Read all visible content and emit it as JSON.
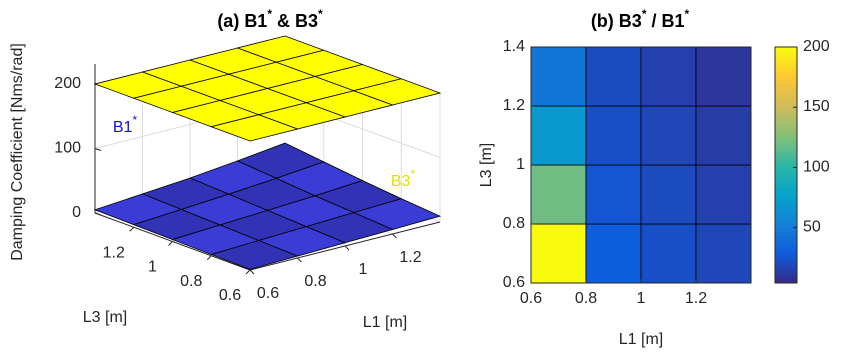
{
  "chart_data": [
    {
      "type": "surface",
      "title": "(a) B1* & B3*",
      "zlabel": "Damping Coefficient [Nms/rad]",
      "xlabel": "L1 [m]",
      "ylabel": "L3 [m]",
      "x": [
        0.6,
        0.8,
        1,
        1.2,
        1.4
      ],
      "y": [
        0.6,
        0.8,
        1,
        1.2,
        1.4
      ],
      "xlim": [
        0.6,
        1.4
      ],
      "ylim": [
        0.6,
        1.4
      ],
      "zlim": [
        0,
        200
      ],
      "xticks": [
        0.6,
        0.8,
        1,
        1.2
      ],
      "yticks": [
        0.6,
        0.8,
        1,
        1.2
      ],
      "zticks": [
        0,
        100,
        200
      ],
      "grid": true,
      "series": [
        {
          "name": "B1*",
          "color": "#3b3bd6",
          "values": [
            [
              1,
              3,
              5,
              7,
              9
            ],
            [
              2,
              5,
              8,
              11,
              14
            ],
            [
              3,
              7,
              11,
              15,
              20
            ],
            [
              4,
              9,
              14,
              20,
              27
            ],
            [
              5,
              11,
              17,
              25,
              34
            ]
          ]
        },
        {
          "name": "B3*",
          "color": "#ffff00",
          "values": [
            [
              200,
              200,
              200,
              200,
              200
            ],
            [
              200,
              200,
              200,
              200,
              200
            ],
            [
              200,
              200,
              200,
              200,
              200
            ],
            [
              200,
              200,
              200,
              200,
              200
            ],
            [
              200,
              200,
              200,
              200,
              200
            ]
          ]
        }
      ]
    },
    {
      "type": "heatmap",
      "title": "(b) B3* / B1*",
      "xlabel": "L1 [m]",
      "ylabel": "L3 [m]",
      "x": [
        0.7,
        0.9,
        1.1,
        1.3
      ],
      "y": [
        0.7,
        0.9,
        1.1,
        1.3
      ],
      "xlim": [
        0.6,
        1.4
      ],
      "ylim": [
        0.6,
        1.4
      ],
      "xticks": [
        0.6,
        0.8,
        1,
        1.2
      ],
      "yticks": [
        0.6,
        0.8,
        1,
        1.2,
        1.4
      ],
      "values": [
        [
          200,
          30,
          22,
          18
        ],
        [
          120,
          25,
          20,
          15
        ],
        [
          70,
          22,
          18,
          13
        ],
        [
          45,
          20,
          15,
          10
        ]
      ],
      "colormap": "parula",
      "clim": [
        4,
        200
      ],
      "cticks": [
        50,
        100,
        150,
        200
      ]
    }
  ]
}
